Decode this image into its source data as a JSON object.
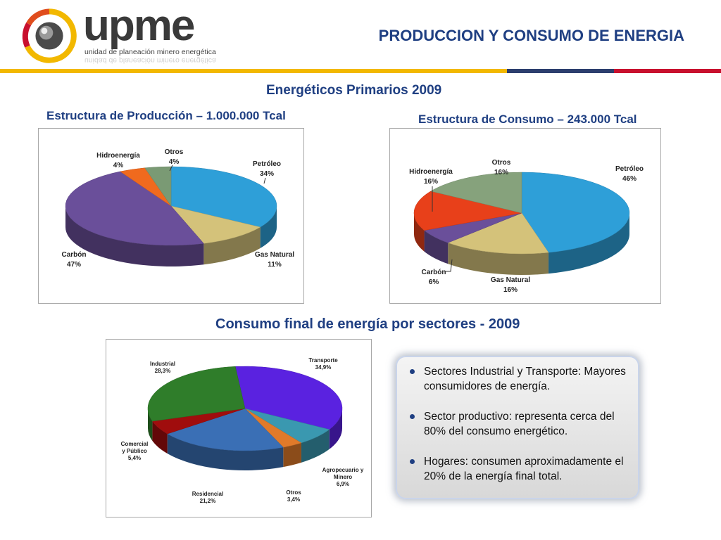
{
  "header": {
    "logo_word": "upme",
    "logo_tagline": "unidad de planeación minero energética",
    "title": "PRODUCCION Y CONSUMO DE ENERGIA"
  },
  "colors": {
    "title": "#1f3f82",
    "band_yellow": "#f2b800",
    "band_navy": "#2c3e6e",
    "band_red": "#c8102e"
  },
  "section1": {
    "title": "Energéticos Primarios 2009",
    "production_subtitle": "Estructura de Producción – 1.000.000 Tcal",
    "consumption_subtitle": "Estructura de Consumo – 243.000 Tcal"
  },
  "section2": {
    "title": "Consumo final de energía por sectores - 2009"
  },
  "notes": [
    "Sectores Industrial y Transporte: Mayores consumidores de energía.",
    "Sector productivo: representa cerca del 80% del consumo energético.",
    "Hogares: consumen aproximadamente el 20% de la energía final total."
  ],
  "chart_data": [
    {
      "type": "pie",
      "title": "Estructura de Producción – 1.000.000 Tcal",
      "slices": [
        {
          "name": "Petróleo",
          "label": "34%",
          "value": 34,
          "color": "#2e9fd8"
        },
        {
          "name": "Gas Natural",
          "label": "11%",
          "value": 11,
          "color": "#d4c27a"
        },
        {
          "name": "Carbón",
          "label": "47%",
          "value": 47,
          "color": "#6a4f9a"
        },
        {
          "name": "Hidroenergía",
          "label": "4%",
          "value": 4,
          "color": "#f06a1e"
        },
        {
          "name": "Otros",
          "label": "4%",
          "value": 4,
          "color": "#7a9a74"
        }
      ]
    },
    {
      "type": "pie",
      "title": "Estructura de Consumo – 243.000 Tcal",
      "slices": [
        {
          "name": "Petróleo",
          "label": "46%",
          "value": 46,
          "color": "#2e9fd8"
        },
        {
          "name": "Gas Natural",
          "label": "16%",
          "value": 16,
          "color": "#d4c27a"
        },
        {
          "name": "Carbón",
          "label": "6%",
          "value": 6,
          "color": "#6a4f9a"
        },
        {
          "name": "Hidroenergía",
          "label": "16%",
          "value": 16,
          "color": "#e8401a"
        },
        {
          "name": "Otros",
          "label": "16%",
          "value": 16,
          "color": "#86a27c"
        }
      ]
    },
    {
      "type": "pie",
      "title": "Consumo final de energía por sectores - 2009",
      "slices": [
        {
          "name": "Transporte",
          "label": "34,9%",
          "value": 34.9,
          "color": "#5a22e0"
        },
        {
          "name": "Agropecuario y Minero",
          "label": "6,9%",
          "value": 6.9,
          "color": "#3a98b0"
        },
        {
          "name": "Otros",
          "label": "3,4%",
          "value": 3.4,
          "color": "#e07a2a"
        },
        {
          "name": "Residencial",
          "label": "21,2%",
          "value": 21.2,
          "color": "#3a6fb5"
        },
        {
          "name": "Comercial y Público",
          "label": "5,4%",
          "value": 5.4,
          "color": "#a00d0d"
        },
        {
          "name": "Industrial",
          "label": "28,3%",
          "value": 28.3,
          "color": "#2f7d2a"
        }
      ]
    }
  ]
}
